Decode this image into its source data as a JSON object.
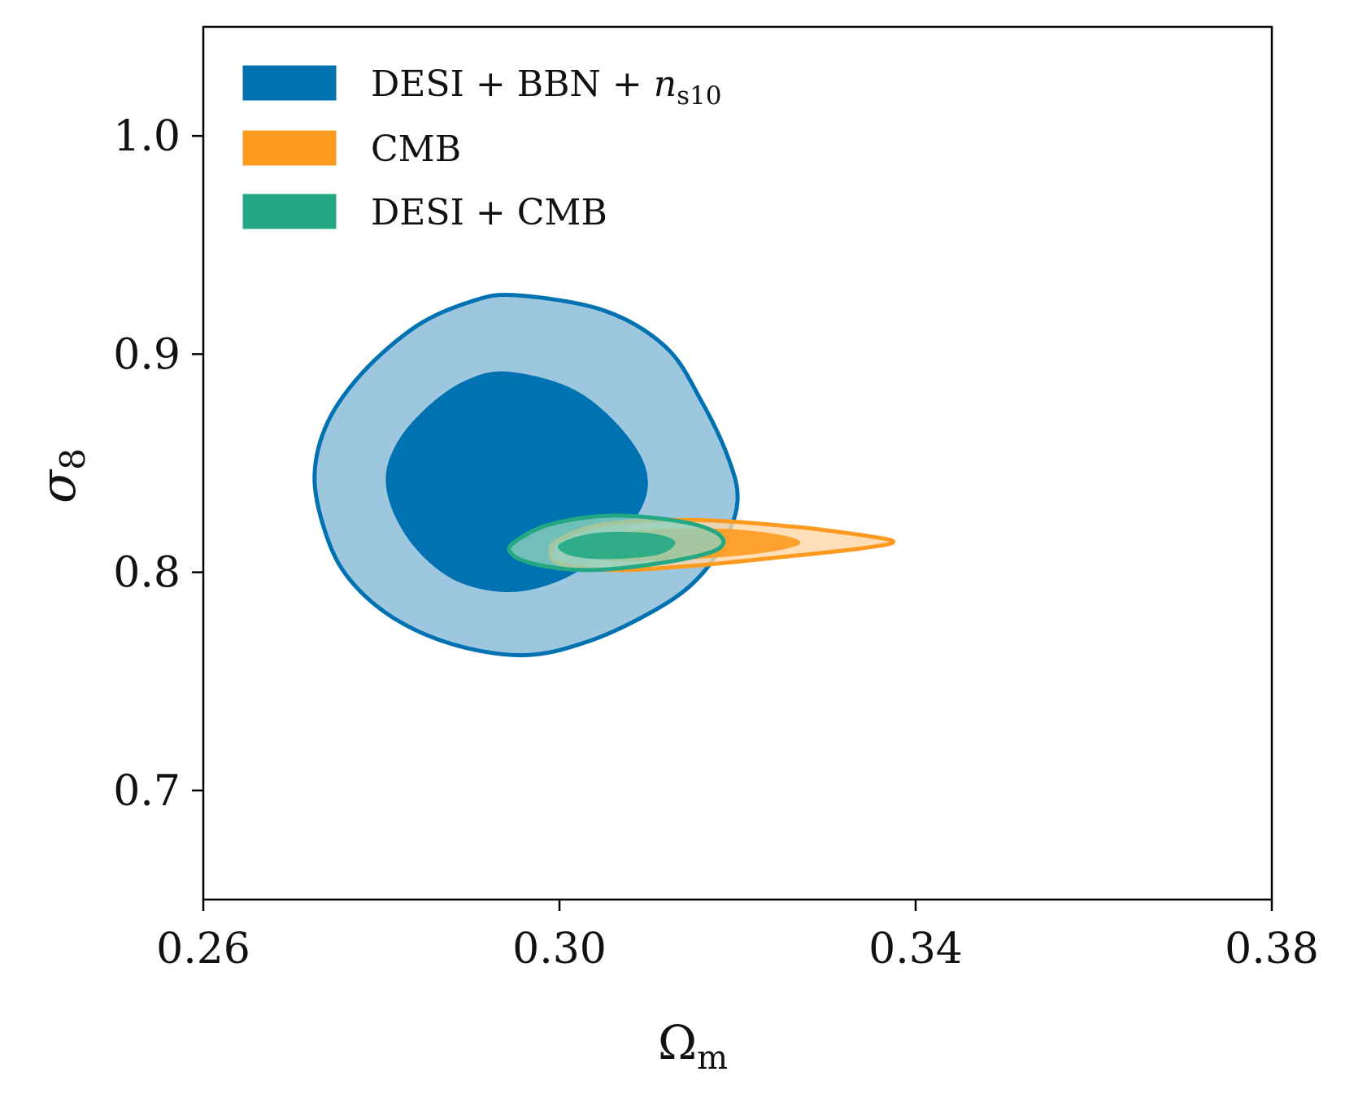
{
  "chart_data": {
    "type": "contour",
    "xlabel": {
      "main": "Ω",
      "sub": "m"
    },
    "ylabel": {
      "main": "σ",
      "sub": "8"
    },
    "xlim": [
      0.26,
      0.38
    ],
    "ylim": [
      0.65,
      1.05
    ],
    "x_ticks": [
      0.26,
      0.3,
      0.34,
      0.38
    ],
    "x_tick_labels": [
      "0.26",
      "0.30",
      "0.34",
      "0.38"
    ],
    "y_ticks": [
      0.7,
      0.8,
      0.9,
      1.0
    ],
    "y_tick_labels": [
      "0.7",
      "0.8",
      "0.9",
      "1.0"
    ],
    "legend": {
      "location": "upper-left",
      "entries": [
        {
          "key": "desi",
          "main": "DESI + BBN + ",
          "math": "n",
          "sub": "s10",
          "color": "#0072b2"
        },
        {
          "key": "cmb",
          "main": "CMB",
          "math": "",
          "sub": "",
          "color": "#ff9922"
        },
        {
          "key": "desicmb",
          "main": "DESI + CMB",
          "math": "",
          "sub": "",
          "color": "#24a884"
        }
      ]
    },
    "series": [
      {
        "name": "DESI + BBN + n_s10",
        "fill_inner": "#0072b2",
        "fill_outer": "#9dc6df",
        "stroke": "#0072b2",
        "outer_contour": [
          [
            0.295,
            0.927
          ],
          [
            0.305,
            0.92
          ],
          [
            0.312,
            0.903
          ],
          [
            0.316,
            0.878
          ],
          [
            0.319,
            0.852
          ],
          [
            0.32,
            0.833
          ],
          [
            0.3185,
            0.814
          ],
          [
            0.315,
            0.795
          ],
          [
            0.31,
            0.781
          ],
          [
            0.303,
            0.768
          ],
          [
            0.296,
            0.762
          ],
          [
            0.288,
            0.767
          ],
          [
            0.281,
            0.78
          ],
          [
            0.276,
            0.799
          ],
          [
            0.2735,
            0.821
          ],
          [
            0.2725,
            0.845
          ],
          [
            0.274,
            0.869
          ],
          [
            0.278,
            0.892
          ],
          [
            0.284,
            0.913
          ],
          [
            0.29,
            0.924
          ]
        ],
        "inner_contour": [
          [
            0.294,
            0.892
          ],
          [
            0.301,
            0.885
          ],
          [
            0.306,
            0.87
          ],
          [
            0.3095,
            0.85
          ],
          [
            0.3095,
            0.832
          ],
          [
            0.306,
            0.813
          ],
          [
            0.301,
            0.798
          ],
          [
            0.295,
            0.791
          ],
          [
            0.289,
            0.795
          ],
          [
            0.2845,
            0.808
          ],
          [
            0.2815,
            0.826
          ],
          [
            0.2805,
            0.844
          ],
          [
            0.282,
            0.861
          ],
          [
            0.2855,
            0.877
          ],
          [
            0.2895,
            0.888
          ]
        ]
      },
      {
        "name": "CMB",
        "fill_inner": "#fe9a1f",
        "fill_outer": "#fed7a8",
        "stroke": "#fe9a1f",
        "outer_contour": [
          [
            0.3,
            0.815
          ],
          [
            0.305,
            0.822
          ],
          [
            0.315,
            0.824
          ],
          [
            0.326,
            0.821
          ],
          [
            0.334,
            0.817
          ],
          [
            0.3375,
            0.814
          ],
          [
            0.334,
            0.811
          ],
          [
            0.325,
            0.807
          ],
          [
            0.315,
            0.803
          ],
          [
            0.306,
            0.801
          ],
          [
            0.3,
            0.804
          ],
          [
            0.299,
            0.81
          ]
        ],
        "inner_contour": [
          [
            0.302,
            0.813
          ],
          [
            0.308,
            0.819
          ],
          [
            0.318,
            0.82
          ],
          [
            0.325,
            0.817
          ],
          [
            0.327,
            0.813
          ],
          [
            0.323,
            0.809
          ],
          [
            0.315,
            0.806
          ],
          [
            0.307,
            0.805
          ],
          [
            0.3025,
            0.808
          ]
        ]
      },
      {
        "name": "DESI + CMB",
        "fill_inner": "#24a884",
        "fill_outer": "#8ed1bd",
        "stroke": "#24a884",
        "outer_contour": [
          [
            0.295,
            0.814
          ],
          [
            0.299,
            0.822
          ],
          [
            0.306,
            0.826
          ],
          [
            0.314,
            0.823
          ],
          [
            0.318,
            0.817
          ],
          [
            0.3175,
            0.81
          ],
          [
            0.311,
            0.804
          ],
          [
            0.303,
            0.801
          ],
          [
            0.297,
            0.804
          ],
          [
            0.2945,
            0.809
          ]
        ],
        "inner_contour": [
          [
            0.3,
            0.813
          ],
          [
            0.304,
            0.818
          ],
          [
            0.31,
            0.818
          ],
          [
            0.313,
            0.814
          ],
          [
            0.311,
            0.808
          ],
          [
            0.305,
            0.806
          ],
          [
            0.301,
            0.808
          ]
        ]
      }
    ]
  }
}
